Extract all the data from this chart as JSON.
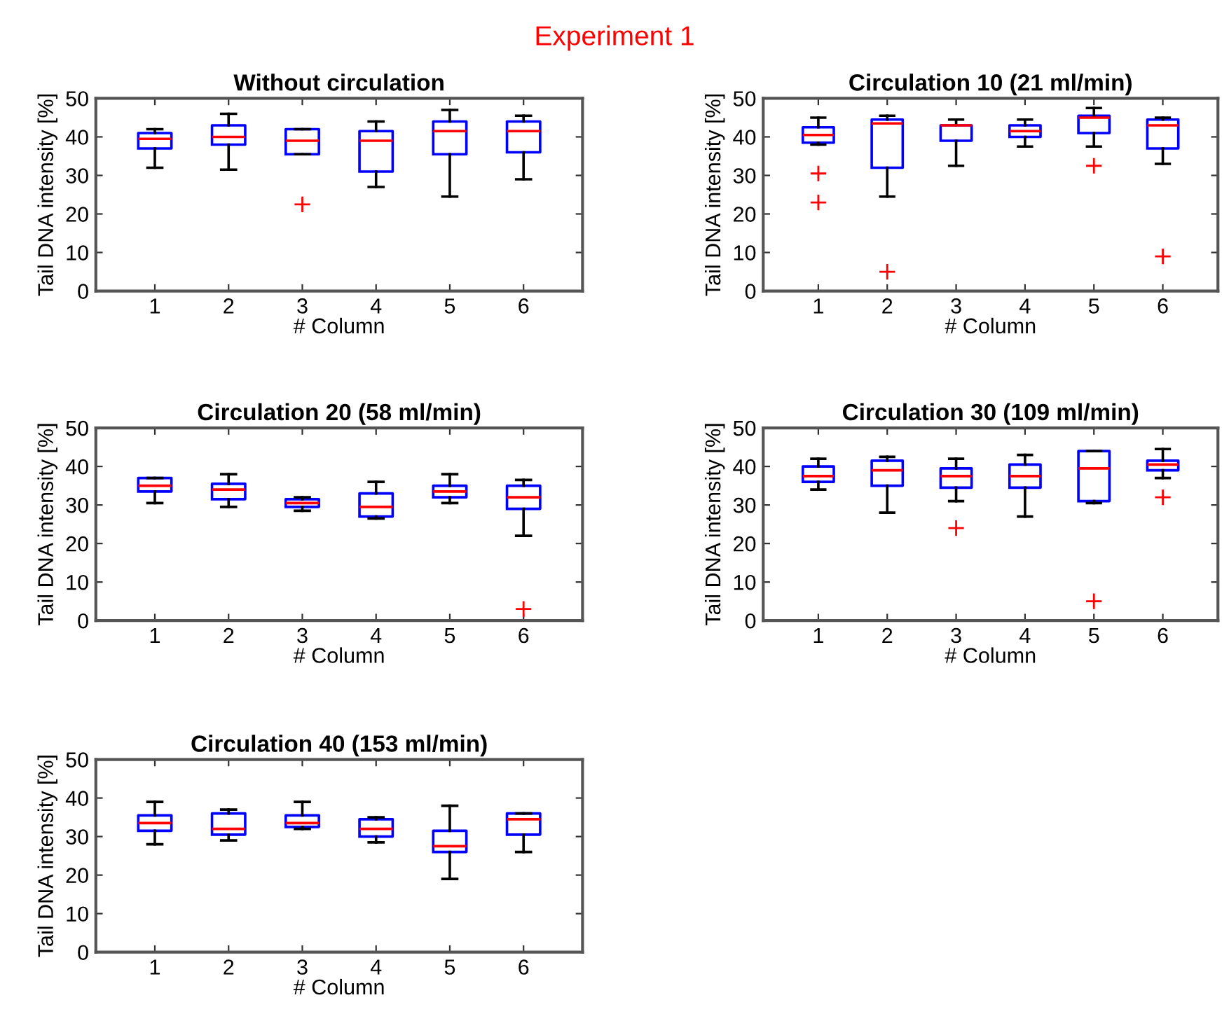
{
  "chart_data": [
    {
      "type": "box",
      "title": "Without circulation",
      "xlabel": "# Column",
      "ylabel": "Tail DNA intensity [%]",
      "annotations": [
        "Experiment 1"
      ],
      "categories": [
        "1",
        "2",
        "3",
        "4",
        "5",
        "6"
      ],
      "ylim": [
        0,
        50
      ],
      "yticks": [
        0,
        10,
        20,
        30,
        40,
        50
      ],
      "color": "#0000ff",
      "grid": false,
      "boxes": [
        {
          "low": 32,
          "q1": 37,
          "median": 39.5,
          "q3": 41,
          "high": 42
        },
        {
          "low": 31.5,
          "q1": 38,
          "median": 40,
          "q3": 43,
          "high": 46
        },
        {
          "low": 35.5,
          "q1": 35.5,
          "median": 39,
          "q3": 42,
          "high": 42,
          "outliers": [
            22.5
          ]
        },
        {
          "low": 27,
          "q1": 31,
          "median": 39,
          "q3": 41.5,
          "high": 44
        },
        {
          "low": 24.5,
          "q1": 35.5,
          "median": 41.5,
          "q3": 44,
          "high": 47
        },
        {
          "low": 29,
          "q1": 36,
          "median": 41.5,
          "q3": 44,
          "high": 45.5
        }
      ]
    },
    {
      "type": "box",
      "title": "Circulation 10 (21 ml/min)",
      "xlabel": "# Column",
      "ylabel": "Tail DNA intensity [%]",
      "categories": [
        "1",
        "2",
        "3",
        "4",
        "5",
        "6"
      ],
      "ylim": [
        0,
        50
      ],
      "yticks": [
        0,
        10,
        20,
        30,
        40,
        50
      ],
      "color": "#0000ff",
      "grid": false,
      "boxes": [
        {
          "low": 38,
          "q1": 38.5,
          "median": 40.5,
          "q3": 42.5,
          "high": 45,
          "outliers": [
            30.5,
            23
          ]
        },
        {
          "low": 24.5,
          "q1": 32,
          "median": 43.5,
          "q3": 44.5,
          "high": 45.5,
          "outliers": [
            5
          ]
        },
        {
          "low": 32.5,
          "q1": 39,
          "median": 43,
          "q3": 43,
          "high": 44.5
        },
        {
          "low": 37.5,
          "q1": 40,
          "median": 41.5,
          "q3": 43,
          "high": 44.5
        },
        {
          "low": 37.5,
          "q1": 41,
          "median": 45,
          "q3": 45.5,
          "high": 47.5,
          "outliers": [
            32.5
          ]
        },
        {
          "low": 33,
          "q1": 37,
          "median": 43,
          "q3": 44.5,
          "high": 45,
          "outliers": [
            9
          ]
        }
      ]
    },
    {
      "type": "box",
      "title": "Circulation 20 (58 ml/min)",
      "xlabel": "# Column",
      "ylabel": "Tail DNA intensity [%]",
      "categories": [
        "1",
        "2",
        "3",
        "4",
        "5",
        "6"
      ],
      "ylim": [
        0,
        50
      ],
      "yticks": [
        0,
        10,
        20,
        30,
        40,
        50
      ],
      "color": "#0000ff",
      "grid": false,
      "boxes": [
        {
          "low": 30.5,
          "q1": 33.5,
          "median": 35,
          "q3": 37,
          "high": 37
        },
        {
          "low": 29.5,
          "q1": 31.5,
          "median": 34,
          "q3": 35.5,
          "high": 38
        },
        {
          "low": 28.5,
          "q1": 29.5,
          "median": 30.5,
          "q3": 31.5,
          "high": 32
        },
        {
          "low": 26.5,
          "q1": 27,
          "median": 29.5,
          "q3": 33,
          "high": 36
        },
        {
          "low": 30.5,
          "q1": 32,
          "median": 33.5,
          "q3": 35,
          "high": 38
        },
        {
          "low": 22,
          "q1": 29,
          "median": 32,
          "q3": 35,
          "high": 36.5,
          "outliers": [
            3
          ]
        }
      ]
    },
    {
      "type": "box",
      "title": "Circulation 30 (109 ml/min)",
      "xlabel": "# Column",
      "ylabel": "Tail DNA intensity [%]",
      "categories": [
        "1",
        "2",
        "3",
        "4",
        "5",
        "6"
      ],
      "ylim": [
        0,
        50
      ],
      "yticks": [
        0,
        10,
        20,
        30,
        40,
        50
      ],
      "color": "#0000ff",
      "grid": false,
      "boxes": [
        {
          "low": 34,
          "q1": 36,
          "median": 37.5,
          "q3": 40,
          "high": 42
        },
        {
          "low": 28,
          "q1": 35,
          "median": 39,
          "q3": 41.5,
          "high": 42.5
        },
        {
          "low": 31,
          "q1": 34.5,
          "median": 37.5,
          "q3": 39.5,
          "high": 42,
          "outliers": [
            24
          ]
        },
        {
          "low": 27,
          "q1": 34.5,
          "median": 37.5,
          "q3": 40.5,
          "high": 43
        },
        {
          "low": 30.5,
          "q1": 31,
          "median": 39.5,
          "q3": 44,
          "high": 44,
          "outliers": [
            5
          ]
        },
        {
          "low": 37,
          "q1": 39,
          "median": 40.5,
          "q3": 41.5,
          "high": 44.5,
          "outliers": [
            32
          ]
        }
      ]
    },
    {
      "type": "box",
      "title": "Circulation 40 (153 ml/min)",
      "xlabel": "# Column",
      "ylabel": "Tail DNA intensity [%]",
      "categories": [
        "1",
        "2",
        "3",
        "4",
        "5",
        "6"
      ],
      "ylim": [
        0,
        50
      ],
      "yticks": [
        0,
        10,
        20,
        30,
        40,
        50
      ],
      "color": "#0000ff",
      "grid": false,
      "boxes": [
        {
          "low": 28,
          "q1": 31.5,
          "median": 33.5,
          "q3": 35.5,
          "high": 39
        },
        {
          "low": 29,
          "q1": 30.5,
          "median": 32,
          "q3": 36,
          "high": 37
        },
        {
          "low": 32,
          "q1": 32.5,
          "median": 33.5,
          "q3": 35.5,
          "high": 39
        },
        {
          "low": 28.5,
          "q1": 30,
          "median": 32,
          "q3": 34.5,
          "high": 35
        },
        {
          "low": 19,
          "q1": 26,
          "median": 27.5,
          "q3": 31.5,
          "high": 38
        },
        {
          "low": 26,
          "q1": 30.5,
          "median": 34.5,
          "q3": 36,
          "high": 36
        }
      ]
    }
  ]
}
